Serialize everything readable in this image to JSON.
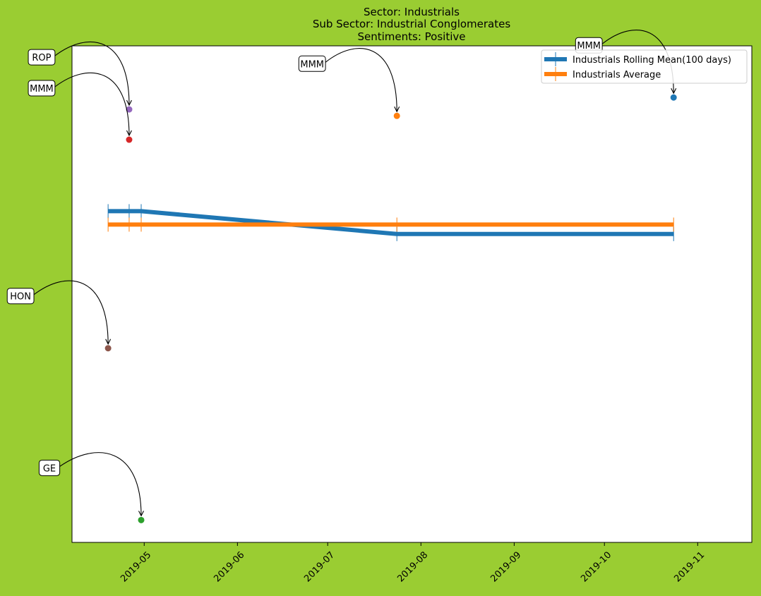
{
  "chart_data": {
    "type": "line",
    "title_lines": [
      "Sector:  Industrials",
      "Sub Sector:  Industrial Conglomerates",
      "Sentiments:  Positive"
    ],
    "xlabel": "",
    "ylabel": "",
    "x_ticks": [
      "2019-05",
      "2019-06",
      "2019-07",
      "2019-08",
      "2019-09",
      "2019-10",
      "2019-11"
    ],
    "xlim": [
      "2019-04-07",
      "2019-11-19"
    ],
    "ylim": [
      0,
      100
    ],
    "grid": false,
    "y_ticks_shown": false,
    "legend_position": "top-right",
    "series": [
      {
        "name": "Industrials Rolling Mean(100 days)",
        "color": "#1f77b4",
        "points": [
          {
            "x": "2019-04-19",
            "y": 66.7
          },
          {
            "x": "2019-04-26",
            "y": 66.7
          },
          {
            "x": "2019-04-30",
            "y": 66.7
          },
          {
            "x": "2019-07-24",
            "y": 62.1
          },
          {
            "x": "2019-10-24",
            "y": 62.1
          }
        ]
      },
      {
        "name": "Industrials Average",
        "color": "#ff7f0e",
        "points": [
          {
            "x": "2019-04-19",
            "y": 64.0
          },
          {
            "x": "2019-04-26",
            "y": 64.0
          },
          {
            "x": "2019-04-30",
            "y": 64.0
          },
          {
            "x": "2019-07-24",
            "y": 64.0
          },
          {
            "x": "2019-10-24",
            "y": 64.0
          }
        ]
      }
    ],
    "annotations": [
      {
        "label": "ROP",
        "x": "2019-04-26",
        "y": 87.2,
        "color": "#9467bd"
      },
      {
        "label": "MMM",
        "x": "2019-04-26",
        "y": 81.1,
        "color": "#d62728"
      },
      {
        "label": "MMM",
        "x": "2019-07-24",
        "y": 85.9,
        "color": "#ff7f0e"
      },
      {
        "label": "MMM",
        "x": "2019-10-24",
        "y": 89.6,
        "color": "#1f77b4"
      },
      {
        "label": "HON",
        "x": "2019-04-19",
        "y": 39.1,
        "color": "#8c564b"
      },
      {
        "label": "GE",
        "x": "2019-04-30",
        "y": 4.5,
        "color": "#2ca02c"
      }
    ]
  }
}
